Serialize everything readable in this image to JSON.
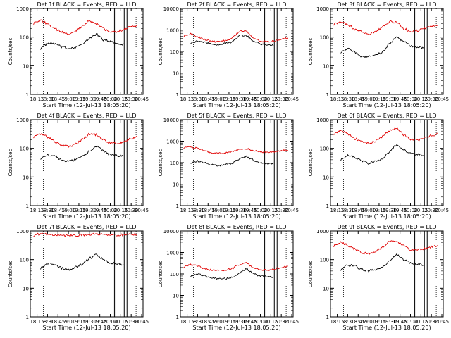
{
  "figure": {
    "colors": {
      "events": "#000000",
      "lld": "#e00000",
      "axes": "#000000",
      "background": "#ffffff"
    },
    "common": {
      "xlabel": "Start Time (12-Jul-13 18:05:20)",
      "ylabel": "Counts/sec",
      "x_ticks": [
        "18:15",
        "18:30",
        "18:45",
        "19:00",
        "19:15",
        "19:30",
        "19:45",
        "20:00",
        "20:15",
        "20:30",
        "20:45"
      ],
      "y_scale": "log",
      "y_ticks_small": [
        "1",
        "10",
        "100",
        "1000"
      ],
      "y_ticks_large": [
        "1",
        "10",
        "100",
        "1000",
        "10000"
      ]
    }
  },
  "chart_data": [
    {
      "type": "line",
      "title": "Det 1f BLACK = Events, RED = LLD",
      "xlabel": "Start Time (12-Jul-13 18:05:20)",
      "ylabel": "Counts/sec",
      "y_scale": "log",
      "ylim": [
        1,
        1000
      ],
      "x": [
        "18:10",
        "18:20",
        "18:30",
        "18:40",
        "18:50",
        "19:00",
        "19:10",
        "19:20",
        "19:30",
        "19:40",
        "19:50",
        "20:00",
        "20:10",
        "20:20",
        "20:30",
        "20:40"
      ],
      "series": [
        {
          "name": "BLACK = Events",
          "color": "#000000",
          "values": [
            null,
            40,
            60,
            60,
            45,
            40,
            45,
            55,
            90,
            130,
            80,
            70,
            60,
            55,
            null,
            null
          ]
        },
        {
          "name": "RED = LLD",
          "color": "#e00000",
          "values": [
            300,
            380,
            290,
            200,
            150,
            120,
            160,
            240,
            380,
            300,
            200,
            150,
            150,
            190,
            230,
            260
          ]
        }
      ]
    },
    {
      "type": "line",
      "title": "Det 2f BLACK = Events, RED = LLD",
      "xlabel": "Start Time (12-Jul-13 18:05:20)",
      "ylabel": "Counts/sec",
      "y_scale": "log",
      "ylim": [
        1,
        10000
      ],
      "x": [
        "18:10",
        "18:20",
        "18:30",
        "18:40",
        "18:50",
        "19:00",
        "19:10",
        "19:20",
        "19:30",
        "19:40",
        "19:50",
        "20:00",
        "20:10",
        "20:20",
        "20:30",
        "20:40"
      ],
      "series": [
        {
          "name": "BLACK = Events",
          "color": "#000000",
          "values": [
            null,
            250,
            300,
            260,
            220,
            210,
            240,
            280,
            550,
            550,
            300,
            220,
            200,
            190,
            null,
            null
          ]
        },
        {
          "name": "RED = LLD",
          "color": "#e00000",
          "values": [
            500,
            650,
            500,
            360,
            300,
            280,
            320,
            420,
            900,
            900,
            420,
            300,
            280,
            300,
            380,
            420
          ]
        }
      ]
    },
    {
      "type": "line",
      "title": "Det 3f BLACK = Events, RED = LLD",
      "xlabel": "Start Time (12-Jul-13 18:05:20)",
      "ylabel": "Counts/sec",
      "y_scale": "log",
      "ylim": [
        1,
        1000
      ],
      "x": [
        "18:10",
        "18:20",
        "18:30",
        "18:40",
        "18:50",
        "19:00",
        "19:10",
        "19:20",
        "19:30",
        "19:40",
        "19:50",
        "20:00",
        "20:10",
        "20:20",
        "20:30",
        "20:40"
      ],
      "series": [
        {
          "name": "BLACK = Events",
          "color": "#000000",
          "values": [
            null,
            30,
            40,
            30,
            20,
            20,
            25,
            30,
            60,
            100,
            70,
            50,
            45,
            40,
            null,
            null
          ]
        },
        {
          "name": "RED = LLD",
          "color": "#e00000",
          "values": [
            280,
            360,
            280,
            190,
            150,
            130,
            150,
            220,
            350,
            330,
            200,
            160,
            170,
            200,
            230,
            260
          ]
        }
      ]
    },
    {
      "type": "line",
      "title": "Det 4f BLACK = Events, RED = LLD",
      "xlabel": "Start Time (12-Jul-13 18:05:20)",
      "ylabel": "Counts/sec",
      "y_scale": "log",
      "ylim": [
        1,
        1000
      ],
      "x": [
        "18:10",
        "18:20",
        "18:30",
        "18:40",
        "18:50",
        "19:00",
        "19:10",
        "19:20",
        "19:30",
        "19:40",
        "19:50",
        "20:00",
        "20:10",
        "20:20",
        "20:30",
        "20:40"
      ],
      "series": [
        {
          "name": "BLACK = Events",
          "color": "#000000",
          "values": [
            null,
            45,
            60,
            55,
            40,
            35,
            40,
            50,
            80,
            120,
            80,
            60,
            55,
            55,
            null,
            null
          ]
        },
        {
          "name": "RED = LLD",
          "color": "#e00000",
          "values": [
            250,
            320,
            250,
            170,
            130,
            115,
            140,
            210,
            320,
            300,
            200,
            150,
            150,
            180,
            220,
            250
          ]
        }
      ]
    },
    {
      "type": "line",
      "title": "Det 5f BLACK = Events, RED = LLD",
      "xlabel": "Start Time (12-Jul-13 18:05:20)",
      "ylabel": "Counts/sec",
      "y_scale": "log",
      "ylim": [
        1,
        10000
      ],
      "x": [
        "18:10",
        "18:20",
        "18:30",
        "18:40",
        "18:50",
        "19:00",
        "19:10",
        "19:20",
        "19:30",
        "19:40",
        "19:50",
        "20:00",
        "20:10",
        "20:20",
        "20:30",
        "20:40"
      ],
      "series": [
        {
          "name": "BLACK = Events",
          "color": "#000000",
          "values": [
            null,
            100,
            120,
            100,
            80,
            75,
            80,
            95,
            150,
            200,
            130,
            100,
            90,
            90,
            null,
            null
          ]
        },
        {
          "name": "RED = LLD",
          "color": "#e00000",
          "values": [
            500,
            560,
            450,
            350,
            300,
            280,
            290,
            320,
            420,
            450,
            360,
            320,
            310,
            320,
            360,
            400
          ]
        }
      ]
    },
    {
      "type": "line",
      "title": "Det 6f BLACK = Events, RED = LLD",
      "xlabel": "Start Time (12-Jul-13 18:05:20)",
      "ylabel": "Counts/sec",
      "y_scale": "log",
      "ylim": [
        1,
        1000
      ],
      "x": [
        "18:10",
        "18:20",
        "18:30",
        "18:40",
        "18:50",
        "19:00",
        "19:10",
        "19:20",
        "19:30",
        "19:40",
        "19:50",
        "20:00",
        "20:10",
        "20:20",
        "20:30",
        "20:40"
      ],
      "series": [
        {
          "name": "BLACK = Events",
          "color": "#000000",
          "values": [
            null,
            40,
            55,
            50,
            35,
            30,
            35,
            45,
            75,
            140,
            90,
            65,
            60,
            55,
            null,
            null
          ]
        },
        {
          "name": "RED = LLD",
          "color": "#e00000",
          "values": [
            320,
            420,
            320,
            220,
            170,
            150,
            180,
            260,
            420,
            500,
            300,
            200,
            190,
            230,
            280,
            320
          ]
        }
      ]
    },
    {
      "type": "line",
      "title": "Det 7f BLACK = Events, RED = LLD",
      "xlabel": "Start Time (12-Jul-13 18:05:20)",
      "ylabel": "Counts/sec",
      "y_scale": "log",
      "ylim": [
        1,
        1000
      ],
      "x": [
        "18:10",
        "18:20",
        "18:30",
        "18:40",
        "18:50",
        "19:00",
        "19:10",
        "19:20",
        "19:30",
        "19:40",
        "19:50",
        "20:00",
        "20:10",
        "20:20",
        "20:30",
        "20:40"
      ],
      "series": [
        {
          "name": "BLACK = Events",
          "color": "#000000",
          "values": [
            null,
            50,
            75,
            70,
            50,
            45,
            55,
            70,
            110,
            150,
            100,
            75,
            70,
            65,
            null,
            null
          ]
        },
        {
          "name": "RED = LLD",
          "color": "#e00000",
          "values": [
            700,
            800,
            760,
            720,
            700,
            690,
            700,
            720,
            760,
            780,
            740,
            720,
            720,
            730,
            740,
            750
          ]
        }
      ]
    },
    {
      "type": "line",
      "title": "Det 8f BLACK = Events, RED = LLD",
      "xlabel": "Start Time (12-Jul-13 18:05:20)",
      "ylabel": "Counts/sec",
      "y_scale": "log",
      "ylim": [
        1,
        10000
      ],
      "x": [
        "18:10",
        "18:20",
        "18:30",
        "18:40",
        "18:50",
        "19:00",
        "19:10",
        "19:20",
        "19:30",
        "19:40",
        "19:50",
        "20:00",
        "20:10",
        "20:20",
        "20:30",
        "20:40"
      ],
      "series": [
        {
          "name": "BLACK = Events",
          "color": "#000000",
          "values": [
            null,
            80,
            100,
            80,
            65,
            60,
            60,
            70,
            110,
            180,
            100,
            80,
            75,
            70,
            null,
            null
          ]
        },
        {
          "name": "RED = LLD",
          "color": "#e00000",
          "values": [
            220,
            280,
            230,
            180,
            150,
            140,
            150,
            180,
            280,
            320,
            200,
            160,
            150,
            170,
            200,
            230
          ]
        }
      ]
    },
    {
      "type": "line",
      "title": "Det 9f BLACK = Events, RED = LLD",
      "xlabel": "Start Time (12-Jul-13 18:05:20)",
      "ylabel": "Counts/sec",
      "y_scale": "log",
      "ylim": [
        1,
        1000
      ],
      "x": [
        "18:10",
        "18:20",
        "18:30",
        "18:40",
        "18:50",
        "19:00",
        "19:10",
        "19:20",
        "19:30",
        "19:40",
        "19:50",
        "20:00",
        "20:10",
        "20:20",
        "20:30",
        "20:40"
      ],
      "series": [
        {
          "name": "BLACK = Events",
          "color": "#000000",
          "values": [
            null,
            45,
            65,
            60,
            45,
            40,
            45,
            55,
            90,
            150,
            100,
            75,
            70,
            65,
            null,
            null
          ]
        },
        {
          "name": "RED = LLD",
          "color": "#e00000",
          "values": [
            300,
            400,
            320,
            230,
            180,
            160,
            190,
            270,
            420,
            460,
            300,
            220,
            210,
            240,
            280,
            320
          ]
        }
      ]
    }
  ]
}
